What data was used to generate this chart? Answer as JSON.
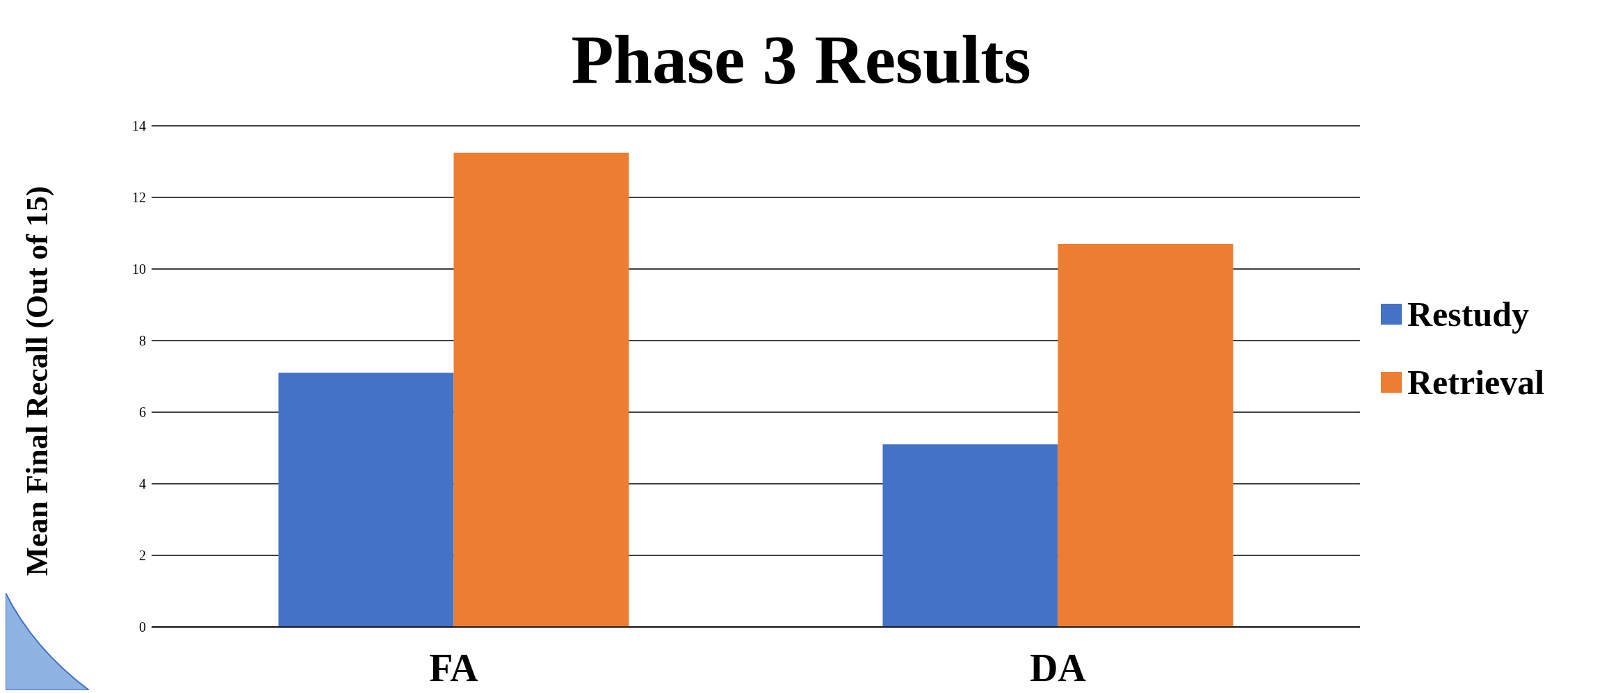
{
  "chart_data": {
    "type": "bar",
    "title": "Phase 3 Results",
    "ylabel": "Mean Final Recall (Out of 15)",
    "categories": [
      "FA",
      "DA"
    ],
    "series": [
      {
        "name": "Restudy",
        "color": "#4472c4",
        "values": [
          7.1,
          5.1
        ]
      },
      {
        "name": "Retrieval",
        "color": "#ed7d31",
        "values": [
          13.25,
          10.7
        ]
      }
    ],
    "ylim": [
      0,
      14
    ],
    "yticks": [
      0,
      2,
      4,
      6,
      8,
      10,
      12,
      14
    ],
    "grid": "y",
    "legend": "right"
  }
}
